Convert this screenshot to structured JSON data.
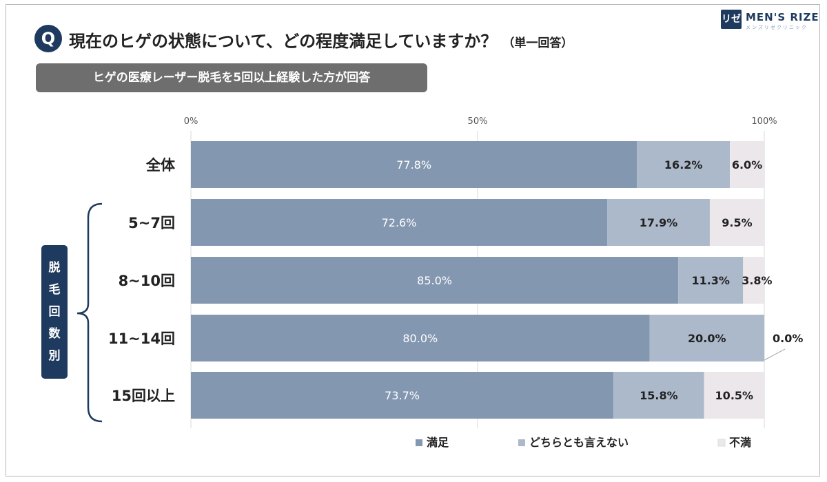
{
  "header": {
    "badge": "Q",
    "question": "現在のヒゲの状態について、どの程度満足していますか？",
    "question_note": "（単一回答）",
    "condition": "ヒゲの医療レーザー脱毛を5回以上経験した方が回答"
  },
  "logo": {
    "mark": "リゼ",
    "name": "MEN'S RIZE",
    "tagline": "メンズリゼクリニック"
  },
  "group_label": [
    "脱",
    "毛",
    "回",
    "数",
    "別"
  ],
  "chart_data": {
    "type": "bar",
    "orientation": "horizontal",
    "stacked": true,
    "percent_axis": true,
    "xlim": [
      0,
      100
    ],
    "xticks": [
      "0%",
      "50%",
      "100%"
    ],
    "categories": [
      "全体",
      "5~7回",
      "8~10回",
      "11~14回",
      "15回以上"
    ],
    "series": [
      {
        "name": "満足",
        "color": "#8497b0",
        "values": [
          77.8,
          72.6,
          85.0,
          80.0,
          73.7
        ],
        "labels": [
          "77.8%",
          "72.6%",
          "85.0%",
          "80.0%",
          "73.7%"
        ]
      },
      {
        "name": "どちらとも言えない",
        "color": "#acb9ca",
        "values": [
          16.2,
          17.9,
          11.3,
          20.0,
          15.8
        ],
        "labels": [
          "16.2%",
          "17.9%",
          "11.3%",
          "20.0%",
          "15.8%"
        ]
      },
      {
        "name": "不満",
        "color": "#ebe7ea",
        "values": [
          6.0,
          9.5,
          3.8,
          0.0,
          10.5
        ],
        "labels": [
          "6.0%",
          "9.5%",
          "3.8%",
          "0.0%",
          "10.5%"
        ]
      }
    ],
    "legend_position": "bottom",
    "grid": true
  }
}
